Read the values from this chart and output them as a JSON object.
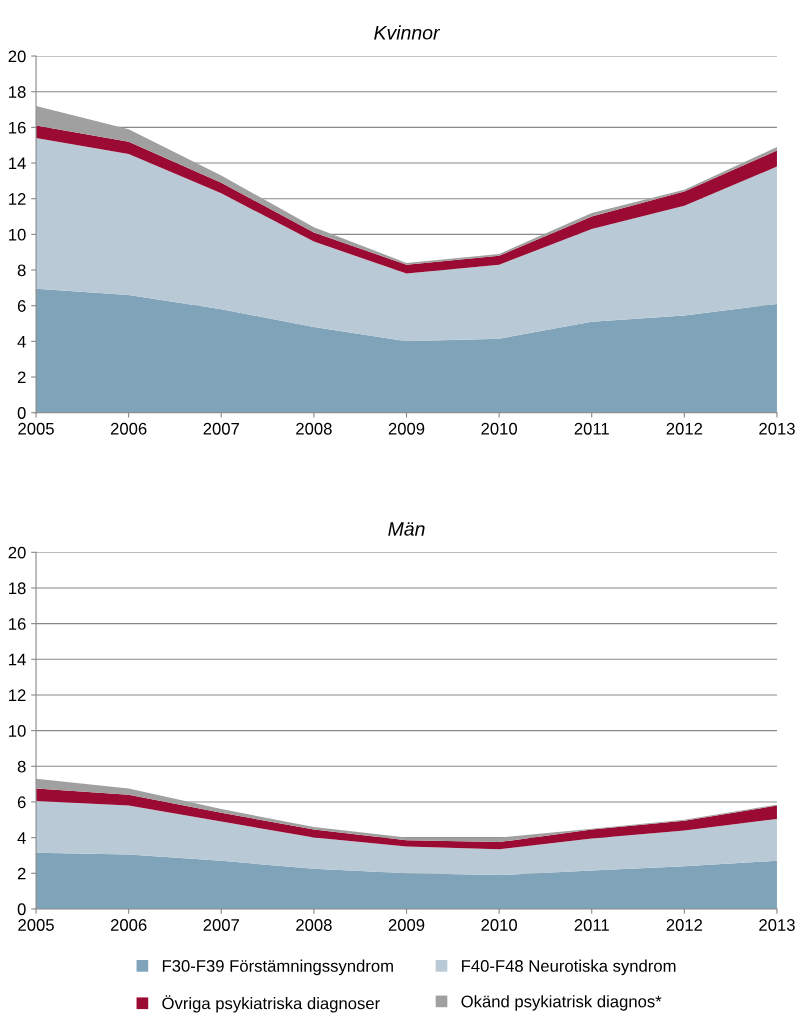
{
  "chart_data": [
    {
      "type": "area",
      "title": "Kvinnor",
      "stacked": true,
      "x": [
        2005,
        2006,
        2007,
        2008,
        2009,
        2010,
        2011,
        2012,
        2013
      ],
      "xlim": [
        2005,
        2013
      ],
      "xticks": [
        2005,
        2006,
        2007,
        2008,
        2009,
        2010,
        2011,
        2012,
        2013
      ],
      "ylim": [
        0,
        20
      ],
      "yticks": [
        0,
        2,
        4,
        6,
        8,
        10,
        12,
        14,
        16,
        18,
        20
      ],
      "grid": "y",
      "legend": false,
      "series": [
        {
          "color": "#7fa3b9",
          "values": [
            6.95,
            6.6,
            5.8,
            4.8,
            4.0,
            4.15,
            5.1,
            5.45,
            6.1
          ]
        },
        {
          "color": "#b9c9d6",
          "values": [
            8.45,
            7.9,
            6.5,
            4.8,
            3.8,
            4.15,
            5.2,
            6.15,
            7.7
          ]
        },
        {
          "color": "#9b0a32",
          "values": [
            0.7,
            0.7,
            0.6,
            0.5,
            0.5,
            0.5,
            0.7,
            0.8,
            0.9
          ]
        },
        {
          "color": "#a0a0a0",
          "values": [
            1.1,
            0.7,
            0.4,
            0.3,
            0.1,
            0.1,
            0.2,
            0.1,
            0.2
          ]
        }
      ]
    },
    {
      "type": "area",
      "title": "Män",
      "stacked": true,
      "x": [
        2005,
        2006,
        2007,
        2008,
        2009,
        2010,
        2011,
        2012,
        2013
      ],
      "xlim": [
        2005,
        2013
      ],
      "xticks": [
        2005,
        2006,
        2007,
        2008,
        2009,
        2010,
        2011,
        2012,
        2013
      ],
      "ylim": [
        0,
        20
      ],
      "yticks": [
        0,
        2,
        4,
        6,
        8,
        10,
        12,
        14,
        16,
        18,
        20
      ],
      "grid": "y",
      "legend": "bottom",
      "series": [
        {
          "name": "F30-F39 Förstämningssyndrom",
          "color": "#7fa3b9",
          "values": [
            3.15,
            3.05,
            2.7,
            2.25,
            2.0,
            1.9,
            2.15,
            2.4,
            2.7
          ]
        },
        {
          "name": "F40-F48 Neurotiska syndrom",
          "color": "#b9c9d6",
          "values": [
            2.9,
            2.75,
            2.2,
            1.75,
            1.5,
            1.45,
            1.8,
            2.0,
            2.35
          ]
        },
        {
          "name": "Övriga psykiatriska diagnoser",
          "color": "#9b0a32",
          "values": [
            0.7,
            0.6,
            0.5,
            0.45,
            0.35,
            0.4,
            0.5,
            0.55,
            0.75
          ]
        },
        {
          "name": "Okänd psykiatrisk diagnos*",
          "color": "#a0a0a0",
          "values": [
            0.55,
            0.35,
            0.2,
            0.15,
            0.15,
            0.25,
            0.05,
            0.05,
            0.05
          ]
        }
      ]
    }
  ]
}
